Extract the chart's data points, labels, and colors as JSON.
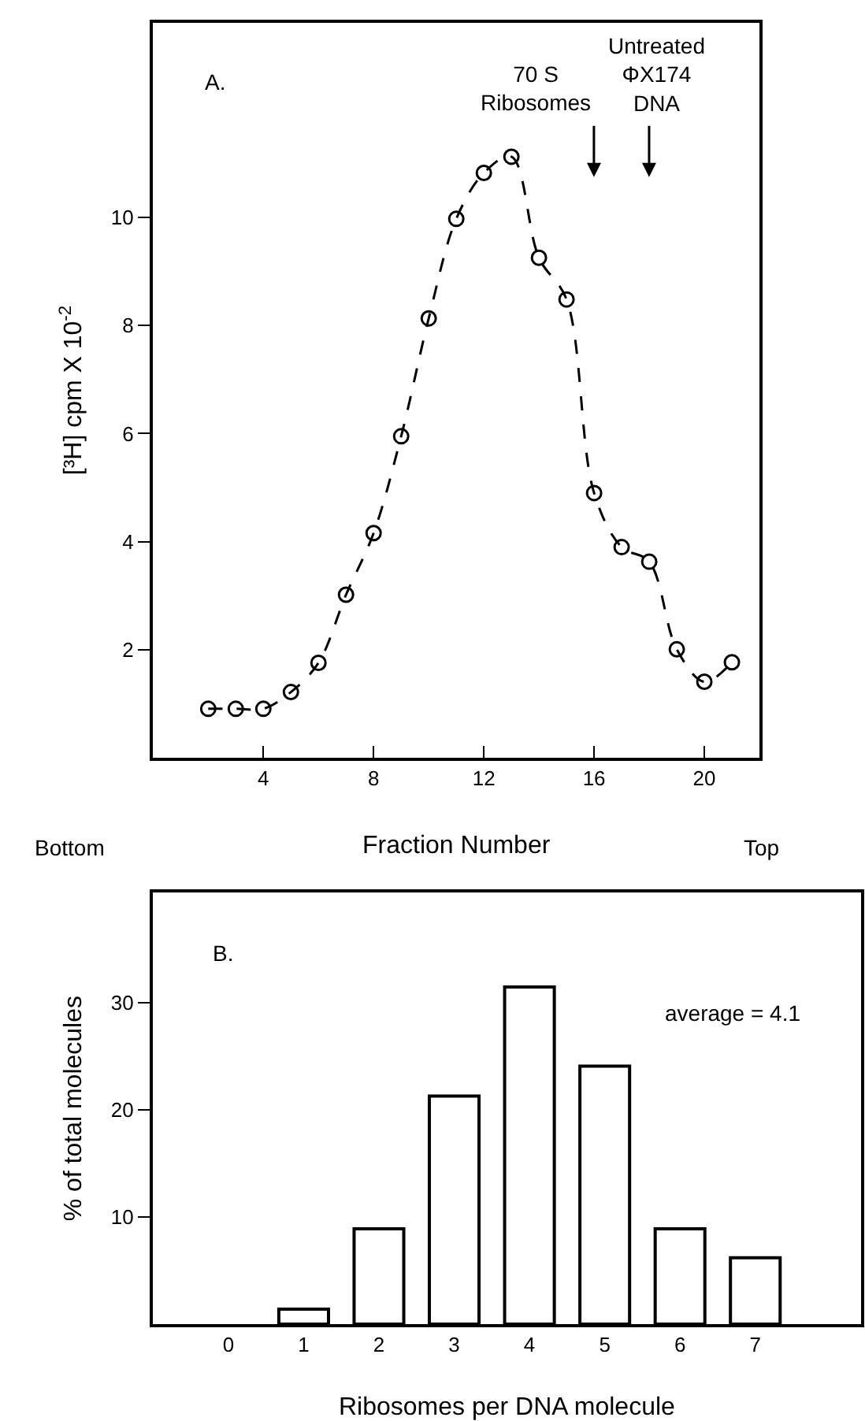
{
  "chart_data": [
    {
      "type": "line",
      "x": [
        2,
        3,
        4,
        5,
        6,
        7,
        8,
        9,
        10,
        11,
        12,
        13,
        14,
        15,
        16,
        17,
        18,
        19,
        20,
        21
      ],
      "series": [
        {
          "color": "#000000",
          "values": [
            0.91,
            0.91,
            0.91,
            1.22,
            1.76,
            3.02,
            4.16,
            5.95,
            8.13,
            9.97,
            10.82,
            11.12,
            9.25,
            8.48,
            4.9,
            3.9,
            3.63,
            2.01,
            1.41,
            1.77
          ]
        }
      ],
      "xlabel": "Fraction Number",
      "ylabel": "[³H] cpm X 10$^{-2}$",
      "xlim": [
        0,
        22
      ],
      "xticks": [
        4,
        8,
        12,
        16,
        20
      ],
      "ylim": [
        0,
        13.6
      ],
      "yticks": [
        2,
        4,
        6,
        8,
        10
      ],
      "marker": "circle",
      "line_style": "dashed",
      "grid": false,
      "annotations": [
        "A.",
        "Bottom",
        "Top",
        "70 S\nRibosomes",
        "Untreated\nΦX174\nDNA"
      ]
    },
    {
      "type": "bar",
      "categories": [
        "0",
        "1",
        "2",
        "3",
        "4",
        "5",
        "6",
        "7"
      ],
      "values": [
        0,
        1.4,
        8.9,
        21.3,
        31.5,
        24.1,
        8.9,
        6.2
      ],
      "color": "#ffffff",
      "xlabel": "Ribosomes per DNA molecule",
      "ylabel": "% of total molecules",
      "ylim": [
        0,
        40.3
      ],
      "yticks": [
        10,
        20,
        30
      ],
      "grid": false,
      "annotations": [
        "B.",
        "average = 4.1"
      ]
    }
  ]
}
